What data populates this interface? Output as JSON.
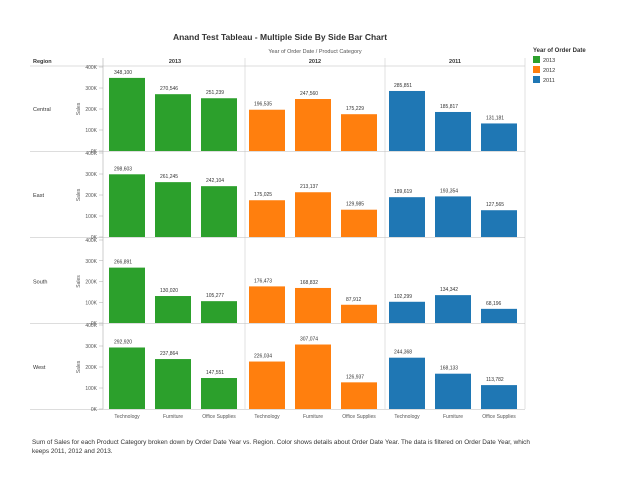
{
  "title": "Anand Test Tableau - Multiple Side By Side Bar Chart",
  "column_header_title": "Year of Order Date / Product Category",
  "region_header": "Region",
  "years": [
    "2013",
    "2012",
    "2011"
  ],
  "categories": [
    "Technology",
    "Furniture",
    "Office Supplies"
  ],
  "regions": [
    "Central",
    "East",
    "South",
    "West"
  ],
  "y_axis_label": "Sales",
  "y_ticks": [
    "400K",
    "300K",
    "200K",
    "100K",
    "0K"
  ],
  "legend": {
    "title": "Year of Order Date",
    "items": [
      {
        "label": "2013",
        "color": "#2ca02c"
      },
      {
        "label": "2012",
        "color": "#ff7f0e"
      },
      {
        "label": "2011",
        "color": "#1f77b4"
      }
    ]
  },
  "caption": "Sum of Sales for each Product Category broken down by Order Date Year vs. Region. Color shows details about Order Date Year. The data is filtered on Order Date Year, which keeps 2011, 2012 and 2013.",
  "chart_data": {
    "type": "bar",
    "title": "Anand Test Tableau - Multiple Side By Side Bar Chart",
    "xlabel": "Year of Order Date / Product Category",
    "ylabel": "Sales",
    "ylim": [
      0,
      400000
    ],
    "grid": false,
    "legend_position": "right",
    "categories": [
      "Technology",
      "Furniture",
      "Office Supplies"
    ],
    "series": [
      {
        "region": "Central",
        "year": "2013",
        "values": [
          348100,
          270546,
          251239
        ],
        "labels": [
          "348,100",
          "270,546",
          "251,239"
        ]
      },
      {
        "region": "Central",
        "year": "2012",
        "values": [
          196535,
          247560,
          175229
        ],
        "labels": [
          "196,535",
          "247,560",
          "175,229"
        ]
      },
      {
        "region": "Central",
        "year": "2011",
        "values": [
          285851,
          185817,
          131181
        ],
        "labels": [
          "285,851",
          "185,817",
          "131,181"
        ]
      },
      {
        "region": "East",
        "year": "2013",
        "values": [
          298603,
          261245,
          242104
        ],
        "labels": [
          "298,603",
          "261,245",
          "242,104"
        ]
      },
      {
        "region": "East",
        "year": "2012",
        "values": [
          175025,
          213137,
          129985
        ],
        "labels": [
          "175,025",
          "213,137",
          "129,985"
        ]
      },
      {
        "region": "East",
        "year": "2011",
        "values": [
          189619,
          193354,
          127565
        ],
        "labels": [
          "189,619",
          "193,354",
          "127,565"
        ]
      },
      {
        "region": "South",
        "year": "2013",
        "values": [
          266891,
          130020,
          105277
        ],
        "labels": [
          "266,891",
          "130,020",
          "105,277"
        ]
      },
      {
        "region": "South",
        "year": "2012",
        "values": [
          176473,
          168832,
          87912
        ],
        "labels": [
          "176,473",
          "168,832",
          "87,912"
        ]
      },
      {
        "region": "South",
        "year": "2011",
        "values": [
          102299,
          134342,
          68196
        ],
        "labels": [
          "102,299",
          "134,342",
          "68,196"
        ]
      },
      {
        "region": "West",
        "year": "2013",
        "values": [
          292920,
          237864,
          147551
        ],
        "labels": [
          "292,920",
          "237,864",
          "147,551"
        ]
      },
      {
        "region": "West",
        "year": "2012",
        "values": [
          226034,
          307074,
          126937
        ],
        "labels": [
          "226,034",
          "307,074",
          "126,937"
        ]
      },
      {
        "region": "West",
        "year": "2011",
        "values": [
          244368,
          168133,
          113782
        ],
        "labels": [
          "244,368",
          "168,133",
          "113,782"
        ]
      }
    ]
  }
}
